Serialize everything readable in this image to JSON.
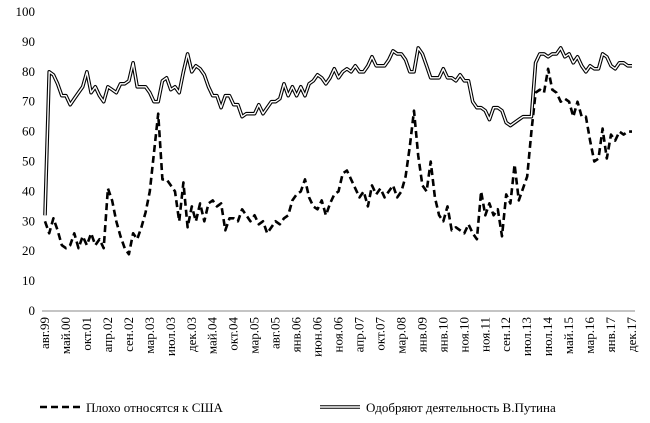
{
  "chart_data": {
    "type": "line",
    "categories": [
      "авг.99",
      null,
      null,
      null,
      null,
      "май.00",
      null,
      null,
      null,
      null,
      "окт.01",
      null,
      null,
      null,
      null,
      "апр.02",
      null,
      null,
      null,
      null,
      "сен.02",
      null,
      null,
      null,
      null,
      "мар.03",
      null,
      null,
      null,
      null,
      "июл.03",
      null,
      null,
      null,
      null,
      "дек.03",
      null,
      null,
      null,
      null,
      "май.04",
      null,
      null,
      null,
      null,
      "окт.04",
      null,
      null,
      null,
      null,
      "мар.05",
      null,
      null,
      null,
      null,
      "авг.05",
      null,
      null,
      null,
      null,
      "янв.06",
      null,
      null,
      null,
      null,
      "июн.06",
      null,
      null,
      null,
      null,
      "ноя.06",
      null,
      null,
      null,
      null,
      "апр.07",
      null,
      null,
      null,
      null,
      "окт.07",
      null,
      null,
      null,
      null,
      "мар.08",
      null,
      null,
      null,
      null,
      "янв.09",
      null,
      null,
      null,
      null,
      "янв.10",
      null,
      null,
      null,
      null,
      "ноя.10",
      null,
      null,
      null,
      null,
      "ноя.11",
      null,
      null,
      null,
      null,
      "сен.12",
      null,
      null,
      null,
      null,
      "июл.13",
      null,
      null,
      null,
      null,
      "июл.14",
      null,
      null,
      null,
      null,
      "май.15",
      null,
      null,
      null,
      null,
      "мар.16",
      null,
      null,
      null,
      null,
      "янв.17",
      null,
      null,
      null,
      null,
      "дек.17"
    ],
    "series": [
      {
        "name": "Плохо относятся к США",
        "color": "#000000",
        "style": "dashed",
        "values": [
          30,
          26,
          31,
          27,
          22,
          21,
          22,
          26,
          21,
          25,
          22,
          26,
          22,
          24,
          21,
          41,
          37,
          30,
          25,
          21,
          19,
          26,
          24,
          28,
          33,
          40,
          53,
          66,
          44,
          44,
          42,
          40,
          30,
          43,
          28,
          35,
          30,
          36,
          30,
          36,
          37,
          35,
          36,
          27,
          31,
          31,
          30,
          34,
          32,
          30,
          32,
          29,
          30,
          26,
          28,
          30,
          29,
          31,
          32,
          37,
          39,
          40,
          44,
          38,
          35,
          34,
          37,
          32,
          36,
          39,
          40,
          46,
          47,
          44,
          41,
          38,
          40,
          35,
          42,
          39,
          41,
          38,
          40,
          42,
          38,
          40,
          45,
          55,
          67,
          52,
          42,
          40,
          50,
          38,
          32,
          30,
          35,
          27,
          28,
          27,
          26,
          29,
          26,
          24,
          40,
          32,
          36,
          32,
          34,
          25,
          39,
          36,
          49,
          37,
          41,
          45,
          60,
          73,
          74,
          73,
          81,
          74,
          73,
          70,
          71,
          70,
          65,
          70,
          65,
          65,
          57,
          50,
          51,
          61,
          51,
          59,
          57,
          60,
          59,
          60,
          60
        ]
      },
      {
        "name": "Одобряют деятельность В.Путина",
        "color": "#000000",
        "style": "double",
        "values": [
          32,
          80,
          79,
          76,
          72,
          72,
          69,
          71,
          73,
          75,
          80,
          73,
          75,
          72,
          70,
          75,
          74,
          73,
          76,
          76,
          77,
          83,
          75,
          75,
          75,
          73,
          70,
          70,
          77,
          78,
          74,
          75,
          73,
          80,
          86,
          80,
          82,
          81,
          79,
          75,
          72,
          72,
          68,
          72,
          72,
          69,
          69,
          65,
          66,
          66,
          66,
          69,
          66,
          68,
          70,
          70,
          71,
          76,
          72,
          75,
          72,
          75,
          72,
          76,
          77,
          79,
          78,
          76,
          78,
          81,
          78,
          80,
          81,
          80,
          82,
          80,
          80,
          82,
          85,
          82,
          82,
          82,
          84,
          87,
          86,
          86,
          84,
          80,
          80,
          88,
          86,
          82,
          78,
          78,
          78,
          81,
          78,
          78,
          77,
          79,
          77,
          77,
          70,
          68,
          68,
          67,
          64,
          68,
          68,
          67,
          63,
          62,
          63,
          64,
          65,
          65,
          65,
          83,
          86,
          86,
          85,
          86,
          86,
          88,
          85,
          86,
          83,
          85,
          82,
          80,
          82,
          81,
          81,
          86,
          85,
          82,
          81,
          83,
          83,
          82,
          82
        ]
      }
    ],
    "ylim": [
      0,
      100
    ],
    "yticks": [
      0,
      10,
      20,
      30,
      40,
      50,
      60,
      70,
      80,
      90,
      100
    ],
    "grid": false,
    "legend": "bottom"
  }
}
